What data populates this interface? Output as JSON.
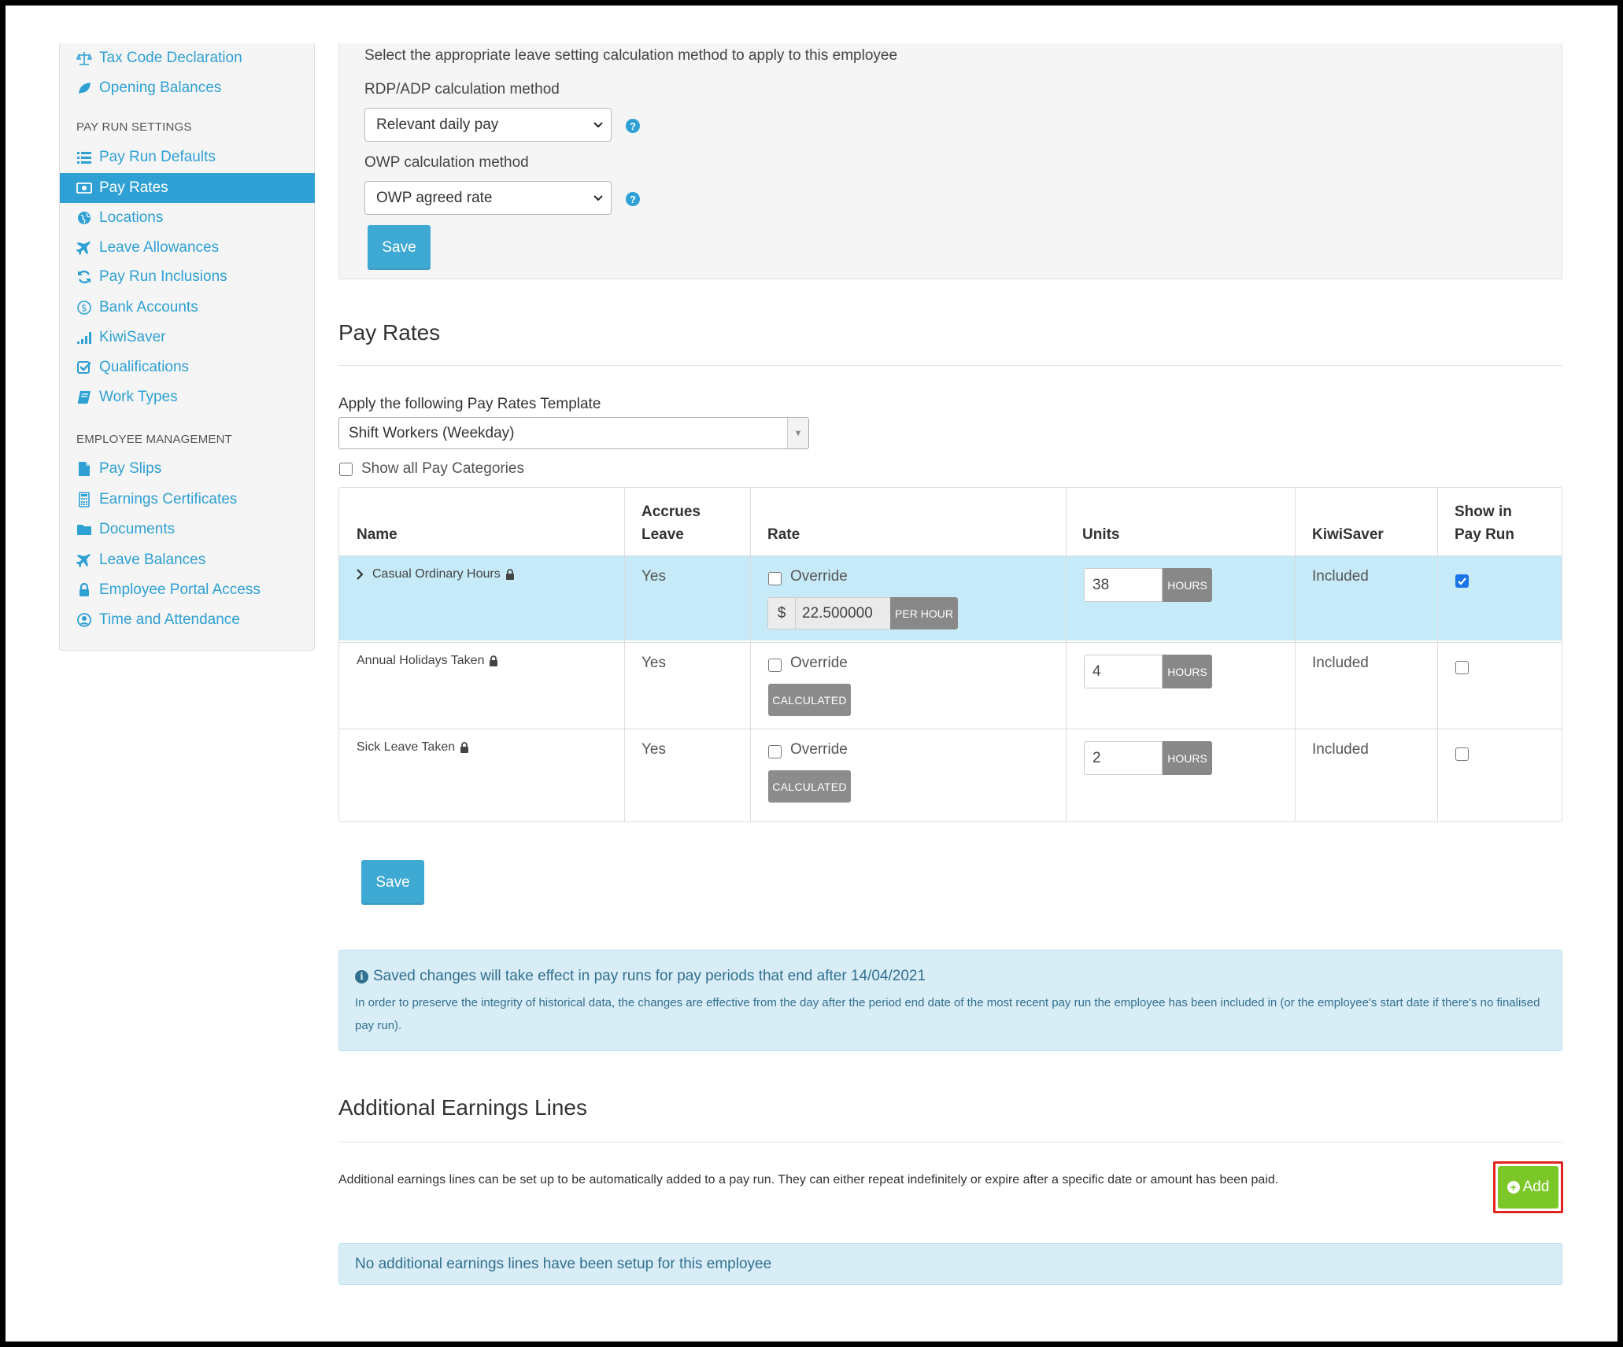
{
  "sidebar": {
    "items_top": [
      {
        "label": "Tax Code Declaration",
        "icon": "scale-icon"
      },
      {
        "label": "Opening Balances",
        "icon": "leaf-icon"
      }
    ],
    "section_pay_run": "PAY RUN SETTINGS",
    "items_pay_run": [
      {
        "label": "Pay Run Defaults",
        "icon": "list-icon"
      },
      {
        "label": "Pay Rates",
        "icon": "money-icon",
        "active": true
      },
      {
        "label": "Locations",
        "icon": "globe-icon"
      },
      {
        "label": "Leave Allowances",
        "icon": "plane-icon"
      },
      {
        "label": "Pay Run Inclusions",
        "icon": "refresh-icon"
      },
      {
        "label": "Bank Accounts",
        "icon": "dollar-circle-icon"
      },
      {
        "label": "KiwiSaver",
        "icon": "signal-icon"
      },
      {
        "label": "Qualifications",
        "icon": "check-square-icon"
      },
      {
        "label": "Work Types",
        "icon": "book-icon"
      }
    ],
    "section_employee": "EMPLOYEE MANAGEMENT",
    "items_employee": [
      {
        "label": "Pay Slips",
        "icon": "file-icon"
      },
      {
        "label": "Earnings Certificates",
        "icon": "calculator-icon"
      },
      {
        "label": "Documents",
        "icon": "folder-icon"
      },
      {
        "label": "Leave Balances",
        "icon": "plane-icon"
      },
      {
        "label": "Employee Portal Access",
        "icon": "lock-icon"
      },
      {
        "label": "Time and Attendance",
        "icon": "clock-user-icon"
      }
    ]
  },
  "leave_settings": {
    "intro": "Select the appropriate leave setting calculation method to apply to this employee",
    "rdp_label": "RDP/ADP calculation method",
    "rdp_value": "Relevant daily pay",
    "owp_label": "OWP calculation method",
    "owp_value": "OWP agreed rate",
    "save_label": "Save"
  },
  "pay_rates": {
    "title": "Pay Rates",
    "template_label": "Apply the following Pay Rates Template",
    "template_value": "Shift Workers (Weekday)",
    "show_all_label": "Show all Pay Categories",
    "columns": {
      "name": "Name",
      "accrues_1": "Accrues",
      "accrues_2": "Leave",
      "rate": "Rate",
      "units": "Units",
      "kiwisaver": "KiwiSaver",
      "show_1": "Show in",
      "show_2": "Pay Run"
    },
    "rows": [
      {
        "name": "Casual Ordinary Hours",
        "accrues": "Yes",
        "override": "Override",
        "currency": "$",
        "rate": "22.500000",
        "rate_unit": "PER HOUR",
        "units": "38",
        "units_unit": "HOURS",
        "kiwisaver": "Included",
        "show": true
      },
      {
        "name": "Annual Holidays Taken",
        "accrues": "Yes",
        "override": "Override",
        "calculated": "CALCULATED",
        "units": "4",
        "units_unit": "HOURS",
        "kiwisaver": "Included",
        "show": false
      },
      {
        "name": "Sick Leave Taken",
        "accrues": "Yes",
        "override": "Override",
        "calculated": "CALCULATED",
        "units": "2",
        "units_unit": "HOURS",
        "kiwisaver": "Included",
        "show": false
      }
    ],
    "save_label": "Save"
  },
  "info": {
    "title": "Saved changes will take effect in pay runs for pay periods that end after 14/04/2021",
    "body": "In order to preserve the integrity of historical data, the changes are effective from the day after the period end date of the most recent pay run the employee has been included in (or the employee's start date if there's no finalised pay run)."
  },
  "additional": {
    "title": "Additional Earnings Lines",
    "description": "Additional earnings lines can be set up to be automatically added to a pay run. They can either repeat indefinitely or expire after a specific date or amount has been paid.",
    "add_label": "Add",
    "empty_message": "No additional earnings lines have been setup for this employee"
  },
  "colors": {
    "accent": "#2ea0d4",
    "highlight_row": "#c6eaf7",
    "add_button": "#7cc728",
    "info_bg": "#d9edf7"
  }
}
